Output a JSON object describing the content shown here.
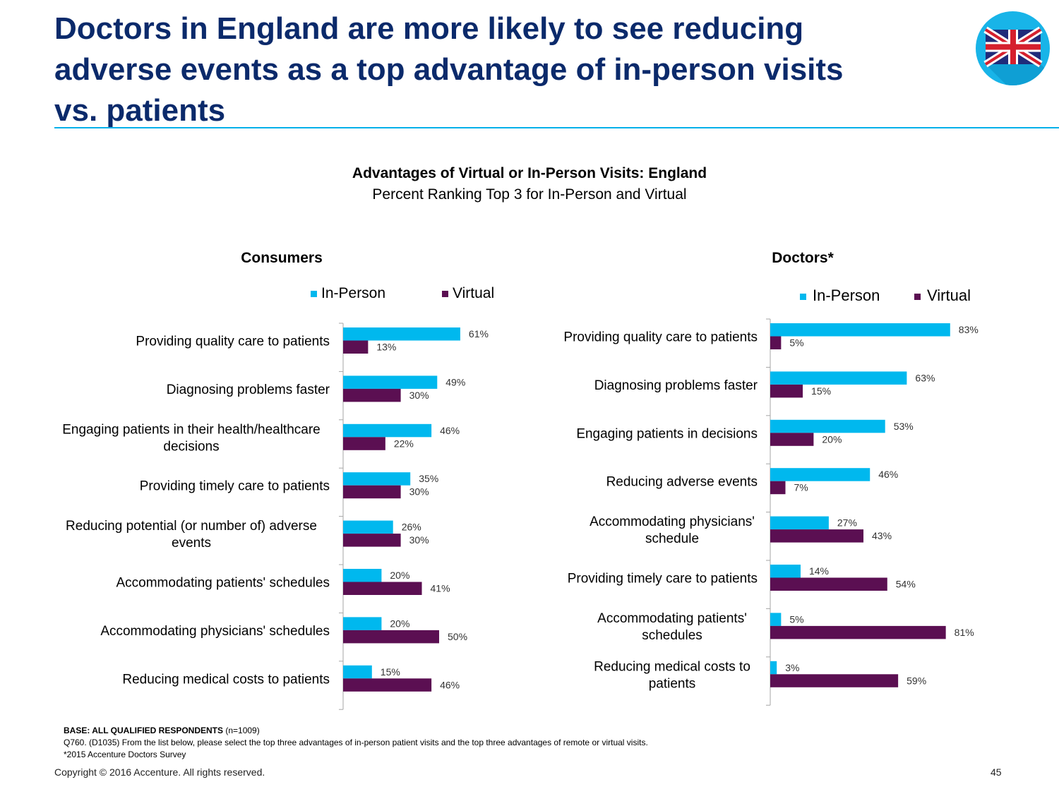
{
  "slide": {
    "headline": "Doctors in England are more likely to see reducing adverse events as a top advantage of in-person visits vs. patients",
    "chart_title": "Advantages of Virtual or In-Person Visits: England",
    "chart_subtitle": "Percent Ranking Top 3 for In-Person and Virtual",
    "flag_icon": "uk-flag-icon",
    "accent_color": "#00b0ea",
    "headline_color": "#0b2a6b"
  },
  "footer": {
    "base_label": "BASE: ALL QUALIFIED RESPONDENTS",
    "base_n": "(n=1009)",
    "question": "Q760. (D1035)  From the list below, please select the top three advantages of in-person patient visits and the top three advantages of remote or virtual visits.",
    "survey_note": "*2015 Accenture Doctors Survey",
    "copyright": "Copyright © 2016 Accenture. All rights reserved.",
    "page_number": "45"
  },
  "chart_data": [
    {
      "type": "bar",
      "orientation": "horizontal",
      "title": "Consumers",
      "xlim": [
        0,
        100
      ],
      "grid": false,
      "legend": "top-right",
      "categories": [
        "Providing quality care to patients",
        "Diagnosing problems faster",
        "Engaging patients in their health/healthcare decisions",
        "Providing timely care to patients",
        "Reducing potential (or number of) adverse events",
        "Accommodating patients' schedules",
        "Accommodating physicians' schedules",
        "Reducing medical costs to patients"
      ],
      "series": [
        {
          "name": "In-Person",
          "color": "#00b8ee",
          "values": [
            61,
            49,
            46,
            35,
            26,
            20,
            20,
            15
          ]
        },
        {
          "name": "Virtual",
          "color": "#5b0f52",
          "values": [
            13,
            30,
            22,
            30,
            30,
            41,
            50,
            46
          ]
        }
      ]
    },
    {
      "type": "bar",
      "orientation": "horizontal",
      "title": "Doctors*",
      "xlim": [
        0,
        100
      ],
      "grid": false,
      "legend": "top-right",
      "categories": [
        "Providing quality care to patients",
        "Diagnosing problems faster",
        "Engaging patients in decisions",
        "Reducing adverse events",
        "Accommodating physicians' schedule",
        "Providing timely care to patients",
        "Accommodating patients' schedules",
        "Reducing medical costs to patients"
      ],
      "series": [
        {
          "name": "In-Person",
          "color": "#00b8ee",
          "values": [
            83,
            63,
            53,
            46,
            27,
            14,
            5,
            3
          ]
        },
        {
          "name": "Virtual",
          "color": "#5b0f52",
          "values": [
            5,
            15,
            20,
            7,
            43,
            54,
            81,
            59
          ]
        }
      ]
    }
  ]
}
